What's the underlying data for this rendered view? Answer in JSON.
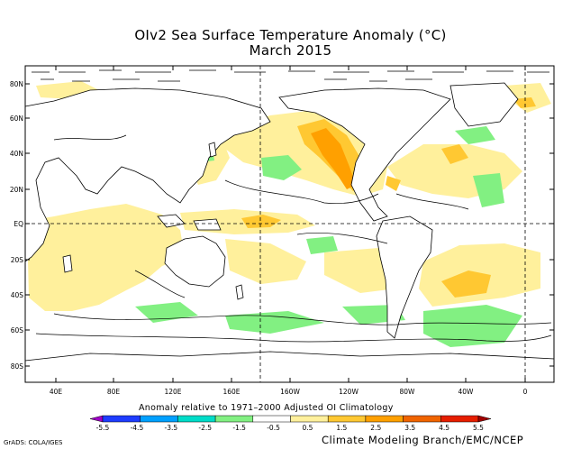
{
  "title": "OIv2 Sea Surface Temperature Anomaly (°C)",
  "subtitle": "March 2015",
  "lat_labels": [
    "80N",
    "60N",
    "40N",
    "20N",
    "EQ",
    "20S",
    "40S",
    "60S",
    "80S"
  ],
  "lon_labels": [
    "40E",
    "80E",
    "120E",
    "160E",
    "160W",
    "120W",
    "80W",
    "40W",
    "0"
  ],
  "legend_caption": "Anomaly relative to 1971–2000 Adjusted OI Climatology",
  "legend_ticks": [
    "-5.5",
    "-4.5",
    "-3.5",
    "-2.5",
    "-1.5",
    "-0.5",
    "0.5",
    "1.5",
    "2.5",
    "3.5",
    "4.5",
    "5.5"
  ],
  "legend_colors": [
    "#a000c8",
    "#1e3cff",
    "#00a0ff",
    "#00dcc8",
    "#82f082",
    "#ffffff",
    "#fff09c",
    "#ffc832",
    "#ffa000",
    "#f06400",
    "#e61e00",
    "#a00000"
  ],
  "footer_left": "GrADS: COLA/IGES",
  "footer_right": "Climate Modeling Branch/EMC/NCEP",
  "colors": {
    "land": "#ffffff",
    "warm_light": "#fff09c",
    "warm_mid": "#ffc832",
    "warm_strong": "#ffa000",
    "cool_light": "#82f082"
  }
}
